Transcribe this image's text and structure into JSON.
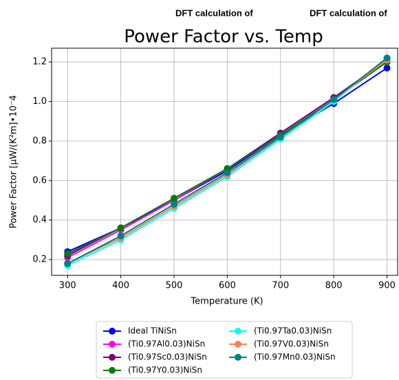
{
  "header_labels": [
    "DFT calculation of",
    "DFT calculation of"
  ],
  "chart_data": {
    "type": "line",
    "title": "Power Factor vs. Temp",
    "x_label": "Temperature (K)",
    "y_label": "Power Factor [μW/(K²m]•10⁻4",
    "x": [
      300,
      400,
      500,
      600,
      700,
      800,
      900
    ],
    "xlim": [
      270,
      920
    ],
    "xticks": [
      300,
      400,
      500,
      600,
      700,
      800,
      900
    ],
    "ylim": [
      0.12,
      1.27
    ],
    "yticks": [
      0.2,
      0.4,
      0.6,
      0.8,
      {
        "value": 1,
        "label": "1.0"
      },
      1.2
    ],
    "grid": true,
    "legend": "below",
    "series": [
      {
        "name": "Ideal TiNiSn",
        "color": "#0000ff",
        "values": [
          0.24,
          0.36,
          0.5,
          0.65,
          0.83,
          0.99,
          1.17
        ]
      },
      {
        "name": "(Ti0.97Al0.03)NiSn",
        "color": "#ff00ff",
        "values": [
          0.21,
          0.35,
          0.5,
          0.66,
          0.84,
          1.02,
          1.2
        ]
      },
      {
        "name": "(Ti0.97Sc0.03)NiSn",
        "color": "#800080",
        "values": [
          0.22,
          0.36,
          0.51,
          0.66,
          0.84,
          1.02,
          1.21
        ]
      },
      {
        "name": "(Ti0.97Y0.03)NiSn",
        "color": "#008000",
        "values": [
          0.23,
          0.36,
          0.51,
          0.66,
          0.83,
          1.01,
          1.2
        ]
      },
      {
        "name": "(Ti0.97Ta0.03)NiSn",
        "color": "#00ffff",
        "values": [
          0.17,
          0.3,
          0.46,
          0.62,
          0.81,
          1.0,
          1.22
        ]
      },
      {
        "name": "(Ti0.97V0.03)NiSn",
        "color": "#ff7f50",
        "values": [
          0.18,
          0.31,
          0.47,
          0.63,
          0.82,
          1.01,
          1.21
        ]
      },
      {
        "name": "(Ti0.97Mn0.03)NiSn",
        "color": "#008080",
        "values": [
          0.18,
          0.32,
          0.48,
          0.64,
          0.82,
          1.01,
          1.22
        ]
      }
    ]
  }
}
